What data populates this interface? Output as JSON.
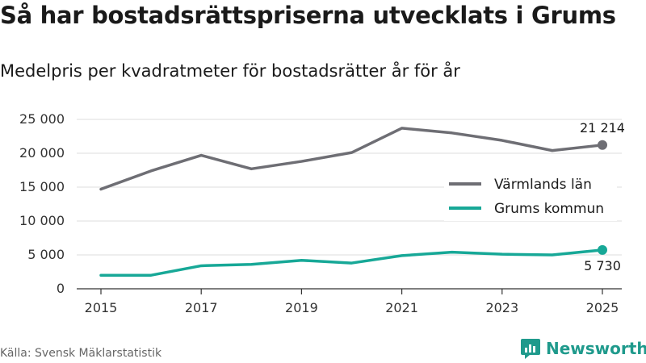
{
  "title": "Så har bostadsrättspriserna utvecklats i Grums",
  "subtitle": "Medelpris per kvadratmeter för bostadsrätter år för år",
  "source": "Källa: Svensk Mäklarstatistik",
  "brand": {
    "name": "Newsworthy",
    "icon": "newsworthy-logo-icon",
    "color": "#1f9a8c"
  },
  "chart_data": {
    "type": "line",
    "title": "Så har bostadsrättspriserna utvecklats i Grums",
    "subtitle": "Medelpris per kvadratmeter för bostadsrätter år för år",
    "xlabel": "",
    "ylabel": "",
    "x": [
      2015,
      2016,
      2017,
      2018,
      2019,
      2020,
      2021,
      2022,
      2023,
      2024,
      2025
    ],
    "xticks": [
      "2015",
      "2017",
      "2019",
      "2021",
      "2023",
      "2025"
    ],
    "xticks_values": [
      2015,
      2017,
      2019,
      2021,
      2023,
      2025
    ],
    "yticks": [
      "0",
      "5 000",
      "10 000",
      "15 000",
      "20 000",
      "25 000"
    ],
    "yticks_values": [
      0,
      5000,
      10000,
      15000,
      20000,
      25000
    ],
    "ylim": [
      0,
      25000
    ],
    "xlim": [
      2015,
      2025
    ],
    "grid": true,
    "legend_position": "right",
    "series": [
      {
        "name": "Värmlands län",
        "color": "#6e6e74",
        "values": [
          14700,
          17400,
          19700,
          17700,
          18800,
          20100,
          23700,
          23000,
          21900,
          20400,
          21214
        ],
        "end_label": "21 214",
        "end_label_position": "above"
      },
      {
        "name": "Grums kommun",
        "color": "#17a897",
        "values": [
          2000,
          2000,
          3400,
          3600,
          4200,
          3800,
          4900,
          5400,
          5100,
          5000,
          5730
        ],
        "end_label": "5 730",
        "end_label_position": "below"
      }
    ]
  }
}
